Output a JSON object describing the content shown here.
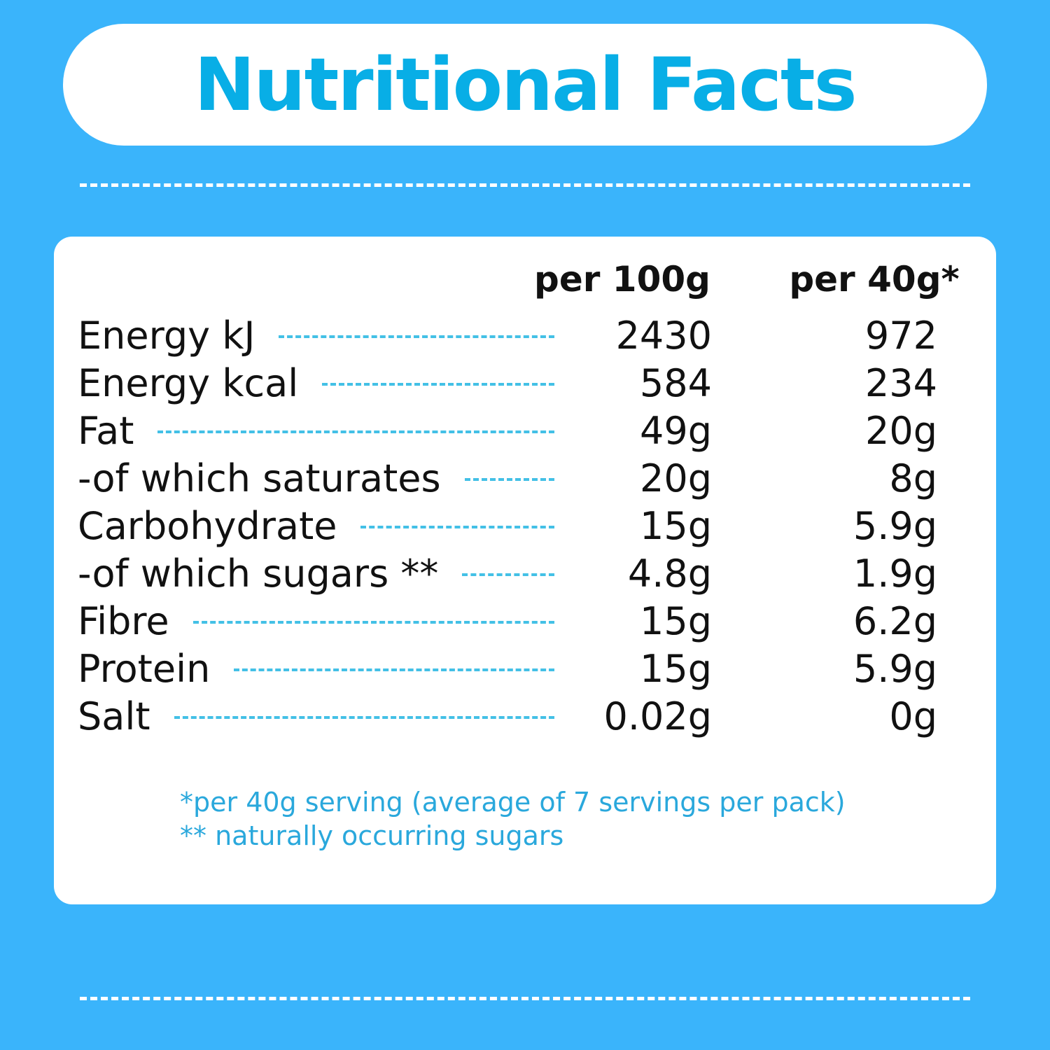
{
  "title": "Nutritional Facts",
  "colors": {
    "background": "#3ab4fb",
    "title": "#08aee6",
    "dash": "#43c0e6",
    "footnote": "#2aa8dc"
  },
  "table": {
    "headers": [
      "per 100g",
      "per 40g*"
    ],
    "rows": [
      {
        "label": "Energy kJ",
        "per_100g": "2430",
        "per_serving": "972"
      },
      {
        "label": "Energy kcal",
        "per_100g": "584",
        "per_serving": "234"
      },
      {
        "label": "Fat",
        "per_100g": "49g",
        "per_serving": "20g"
      },
      {
        "label": "-of which saturates",
        "per_100g": "20g",
        "per_serving": "8g"
      },
      {
        "label": "Carbohydrate",
        "per_100g": "15g",
        "per_serving": "5.9g"
      },
      {
        "label": "-of which sugars **",
        "per_100g": "4.8g",
        "per_serving": "1.9g"
      },
      {
        "label": "Fibre",
        "per_100g": "15g",
        "per_serving": "6.2g"
      },
      {
        "label": "Protein",
        "per_100g": "15g",
        "per_serving": "5.9g"
      },
      {
        "label": "Salt",
        "per_100g": "0.02g",
        "per_serving": "0g"
      }
    ]
  },
  "footnotes": [
    "*per 40g serving (average of 7 servings per pack)",
    "** naturally occurring sugars"
  ]
}
